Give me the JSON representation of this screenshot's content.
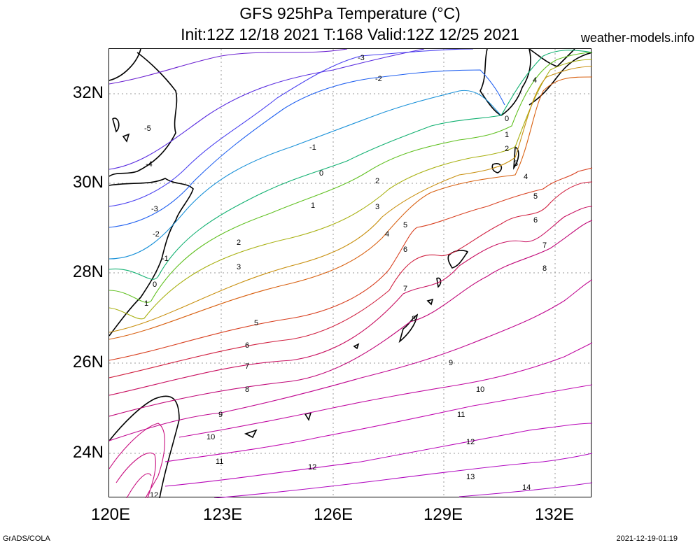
{
  "header": {
    "title_line1": "GFS 925hPa Temperature (°C)",
    "title_line2": "Init:12Z 12/18 2021 T:168 Valid:12Z 12/25 2021",
    "site": "weather-models.info"
  },
  "footer": {
    "credit": "GrADS/COLA",
    "timestamp": "2021-12-19-01:19"
  },
  "axes": {
    "lat_labels": [
      "32N",
      "30N",
      "28N",
      "26N",
      "24N"
    ],
    "lon_labels": [
      "120E",
      "123E",
      "126E",
      "129E",
      "132E"
    ]
  },
  "contour_levels": [
    {
      "value": -5,
      "color": "#6a1fd0"
    },
    {
      "value": -4,
      "color": "#5a2de0"
    },
    {
      "value": -3,
      "color": "#4a40f0"
    },
    {
      "value": -2,
      "color": "#2060f0"
    },
    {
      "value": -1,
      "color": "#1890d8"
    },
    {
      "value": 0,
      "color": "#10b070"
    },
    {
      "value": 1,
      "color": "#60c020"
    },
    {
      "value": 2,
      "color": "#a8b010"
    },
    {
      "value": 3,
      "color": "#c89010"
    },
    {
      "value": 4,
      "color": "#d86010"
    },
    {
      "value": 5,
      "color": "#d84020"
    },
    {
      "value": 6,
      "color": "#d02040"
    },
    {
      "value": 7,
      "color": "#c81060"
    },
    {
      "value": 8,
      "color": "#c00878"
    },
    {
      "value": 9,
      "color": "#c00890"
    },
    {
      "value": 10,
      "color": "#c008a0"
    },
    {
      "value": 11,
      "color": "#c008b0"
    },
    {
      "value": 12,
      "color": "#b808b8"
    },
    {
      "value": 13,
      "color": "#b008c0"
    },
    {
      "value": 14,
      "color": "#a808c0"
    }
  ]
}
